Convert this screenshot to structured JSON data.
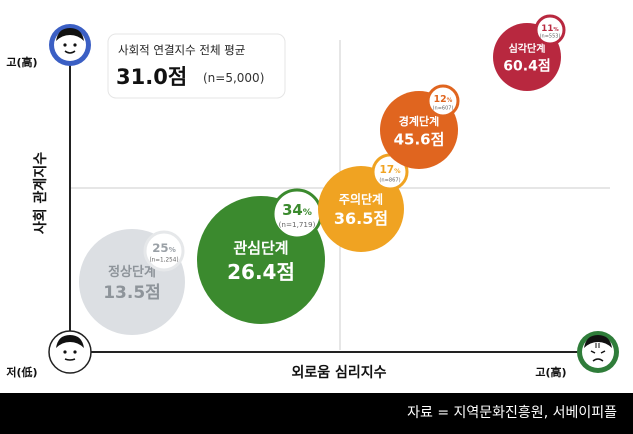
{
  "chart_data": {
    "type": "scatter",
    "xlabel": "외로움 심리지수",
    "ylabel": "사회 관계지수",
    "x_low_label": "저(低)",
    "x_high_label": "고(高)",
    "y_high_label": "고(高)",
    "average_box": {
      "title": "사회적 연결지수 전체 평균",
      "value": "31.0점",
      "n": "(n=5,000)"
    },
    "stages": [
      {
        "name": "정상단계",
        "score_label": "13.5점",
        "score": 13.5,
        "pct": "25",
        "n": "(n=1,254)",
        "share": 25,
        "color": "#dcdfe3"
      },
      {
        "name": "관심단계",
        "score_label": "26.4점",
        "score": 26.4,
        "pct": "34",
        "n": "(n=1,719)",
        "share": 34,
        "color": "#3b8a2e"
      },
      {
        "name": "주의단계",
        "score_label": "36.5점",
        "score": 36.5,
        "pct": "17",
        "n": "(n=867)",
        "share": 17,
        "color": "#f0a322"
      },
      {
        "name": "경계단계",
        "score_label": "45.6점",
        "score": 45.6,
        "pct": "12",
        "n": "(n=607)",
        "share": 12,
        "color": "#e0651f"
      },
      {
        "name": "심각단계",
        "score_label": "60.4점",
        "score": 60.4,
        "pct": "11",
        "n": "(n=553)",
        "share": 11,
        "color": "#b8283f"
      }
    ],
    "pct_unit": "%",
    "colors": {
      "badge_ring": "#555555",
      "axis": "#222222",
      "gridline": "#cccccc"
    }
  },
  "icons": [
    "happy-face-icon",
    "neutral-face-icon",
    "worried-face-icon"
  ],
  "source": "자료 = 지역문화진흥원, 서베이피플"
}
